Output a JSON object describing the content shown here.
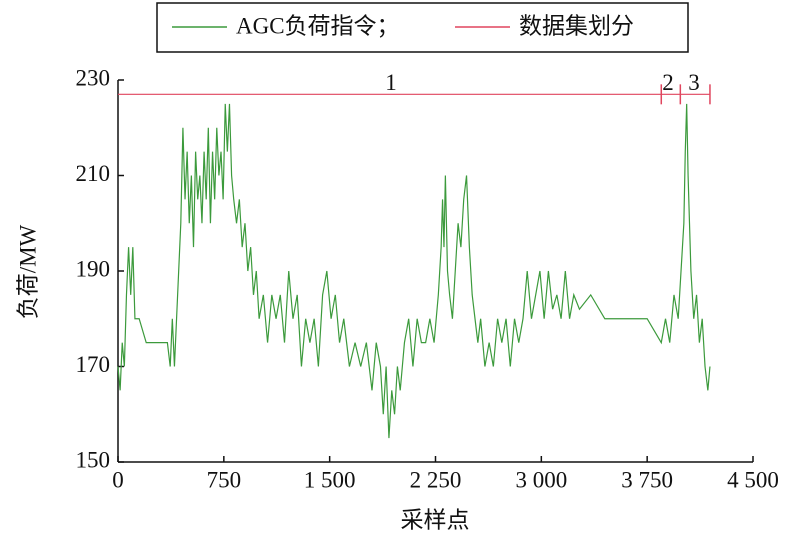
{
  "chart_data": {
    "type": "line",
    "xlabel": "采样点",
    "ylabel": "负荷/MW",
    "xlim": [
      0,
      4500
    ],
    "ylim": [
      150,
      230
    ],
    "xticks": [
      0,
      750,
      {
        "value": 1500,
        "label": "1 500"
      },
      {
        "value": 2250,
        "label": "2 250"
      },
      {
        "value": 3000,
        "label": "3 000"
      },
      {
        "value": 3750,
        "label": "3 750"
      },
      {
        "value": 4500,
        "label": "4 500"
      }
    ],
    "yticks": [
      150,
      170,
      190,
      210,
      230
    ],
    "legend": "top",
    "series": [
      {
        "name": "AGC负荷指令；",
        "color": "#3c9a3c",
        "x": [
          0,
          15,
          30,
          45,
          60,
          75,
          90,
          105,
          120,
          150,
          200,
          250,
          300,
          350,
          370,
          385,
          400,
          415,
          430,
          445,
          460,
          475,
          490,
          505,
          520,
          535,
          550,
          565,
          580,
          595,
          610,
          625,
          640,
          655,
          670,
          685,
          700,
          715,
          730,
          745,
          760,
          775,
          790,
          805,
          820,
          840,
          860,
          880,
          900,
          920,
          940,
          960,
          980,
          1000,
          1030,
          1060,
          1090,
          1120,
          1150,
          1180,
          1210,
          1240,
          1270,
          1300,
          1330,
          1360,
          1390,
          1420,
          1450,
          1480,
          1510,
          1540,
          1570,
          1600,
          1640,
          1680,
          1720,
          1760,
          1800,
          1830,
          1860,
          1880,
          1900,
          1920,
          1940,
          1960,
          1980,
          2000,
          2030,
          2060,
          2090,
          2120,
          2150,
          2180,
          2210,
          2240,
          2270,
          2290,
          2300,
          2310,
          2320,
          2335,
          2350,
          2370,
          2390,
          2410,
          2430,
          2450,
          2470,
          2490,
          2510,
          2530,
          2550,
          2570,
          2600,
          2630,
          2660,
          2690,
          2720,
          2750,
          2780,
          2810,
          2840,
          2870,
          2900,
          2930,
          2960,
          2990,
          3020,
          3050,
          3080,
          3110,
          3140,
          3170,
          3200,
          3230,
          3270,
          3350,
          3450,
          3550,
          3650,
          3750,
          3850,
          3880,
          3910,
          3940,
          3970,
          3990,
          4010,
          4020,
          4030,
          4040,
          4050,
          4060,
          4080,
          4100,
          4120,
          4140,
          4160,
          4180,
          4195
        ],
        "values": [
          170,
          165,
          175,
          170,
          185,
          195,
          185,
          195,
          180,
          180,
          175,
          175,
          175,
          175,
          170,
          180,
          170,
          180,
          190,
          200,
          220,
          205,
          215,
          200,
          210,
          195,
          215,
          205,
          210,
          200,
          215,
          205,
          220,
          200,
          215,
          205,
          220,
          210,
          215,
          205,
          225,
          215,
          225,
          210,
          205,
          200,
          205,
          195,
          200,
          190,
          195,
          185,
          190,
          180,
          185,
          175,
          185,
          180,
          185,
          175,
          190,
          180,
          185,
          170,
          180,
          175,
          180,
          170,
          185,
          190,
          180,
          185,
          175,
          180,
          170,
          175,
          170,
          175,
          165,
          175,
          170,
          160,
          170,
          155,
          165,
          160,
          170,
          165,
          175,
          180,
          170,
          180,
          175,
          175,
          180,
          175,
          185,
          195,
          205,
          195,
          210,
          190,
          185,
          180,
          190,
          200,
          195,
          205,
          210,
          195,
          185,
          180,
          175,
          180,
          170,
          175,
          170,
          180,
          175,
          180,
          170,
          180,
          175,
          180,
          190,
          180,
          185,
          190,
          180,
          190,
          182,
          185,
          180,
          190,
          180,
          185,
          182,
          185,
          180,
          180,
          180,
          180,
          175,
          180,
          175,
          185,
          180,
          190,
          200,
          215,
          225,
          210,
          200,
          190,
          180,
          185,
          175,
          180,
          170,
          165,
          170
        ]
      },
      {
        "name": "数据集划分",
        "color": "#e0455e",
        "x": [
          0,
          4195
        ],
        "values": [
          227,
          227
        ],
        "dividers": [
          3850,
          3985,
          4195
        ]
      }
    ],
    "annotations": [
      {
        "text": "1",
        "x": 1935,
        "y": 229
      },
      {
        "text": "2",
        "x": 3898,
        "y": 229
      },
      {
        "text": "3",
        "x": 4082,
        "y": 229
      }
    ]
  }
}
